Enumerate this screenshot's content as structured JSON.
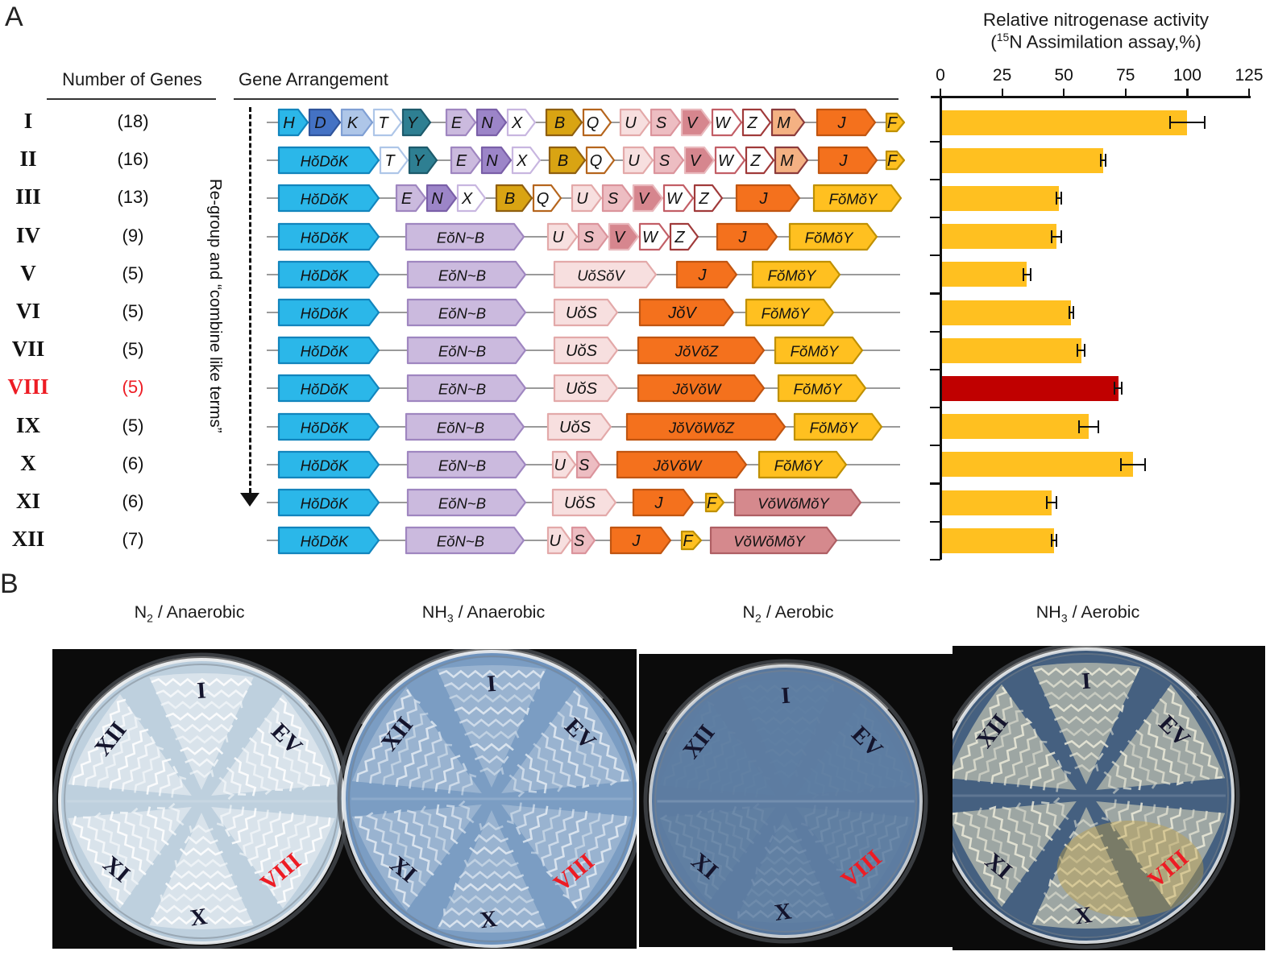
{
  "panelA": {
    "label": "A",
    "header_genes": "Number of Genes",
    "header_arrangement": "Gene Arrangement",
    "regroup_note": "Re-group and “combine like terms”",
    "numerals": [
      "I",
      "II",
      "III",
      "IV",
      "V",
      "VI",
      "VII",
      "VIII",
      "IX",
      "X",
      "XI",
      "XII"
    ],
    "counts": [
      "(18)",
      "(16)",
      "(13)",
      "(9)",
      "(5)",
      "(5)",
      "(5)",
      "(5)",
      "(5)",
      "(6)",
      "(6)",
      "(7)"
    ],
    "highlight_row": 7,
    "highlight_color": "#ED1C24",
    "gene_styles": {
      "c": {
        "f": "#2BB7E9",
        "s": "#1285BD"
      },
      "b": {
        "f": "#4472C4",
        "s": "#2F549B"
      },
      "pw": {
        "f": "#AEC6E8",
        "s": "#7F9FD4"
      },
      "wb": {
        "f": "#FFFFFF",
        "s": "#AEC6E8"
      },
      "t": {
        "f": "#2E7F92",
        "s": "#1D5A6B"
      },
      "lv": {
        "f": "#CBBADE",
        "s": "#9F86C0"
      },
      "pu": {
        "f": "#9C85C8",
        "s": "#7A5FA8"
      },
      "wp": {
        "f": "#FFFFFF",
        "s": "#C8B6E0"
      },
      "g": {
        "f": "#D9A413",
        "s": "#8F5F10"
      },
      "wo": {
        "f": "#FFFFFF",
        "s": "#B5651D"
      },
      "pp": {
        "f": "#F7DFDF",
        "s": "#E3A9A9"
      },
      "pk": {
        "f": "#EDBDC2",
        "s": "#DB949C"
      },
      "ro": {
        "f": "#D6868E",
        "s": "#E9B9BD"
      },
      "wr": {
        "f": "#FFFFFF",
        "s": "#C25E66"
      },
      "wd": {
        "f": "#FFFFFF",
        "s": "#A03A3A"
      },
      "pe": {
        "f": "#F4B183",
        "s": "#8C3B3B"
      },
      "o": {
        "f": "#F4711D",
        "s": "#C05511"
      },
      "y": {
        "f": "#FFC020",
        "s": "#BF9000"
      },
      "rb": {
        "f": "#D5898D",
        "s": "#AF5F64"
      }
    },
    "gene_rows": [
      [
        [
          "H",
          "c",
          38,
          0
        ],
        [
          "D",
          "b",
          40,
          0
        ],
        [
          "K",
          "pw",
          40,
          0
        ],
        [
          "T",
          "wb",
          36,
          0
        ],
        [
          "Y",
          "t",
          36,
          18
        ],
        [
          "E",
          "lv",
          38,
          0
        ],
        [
          "N",
          "pu",
          38,
          0
        ],
        [
          "X",
          "wp",
          36,
          12
        ],
        [
          "B",
          "g",
          46,
          0
        ],
        [
          "Q",
          "wo",
          36,
          10
        ],
        [
          "U",
          "pp",
          38,
          0
        ],
        [
          "S",
          "pk",
          38,
          0
        ],
        [
          "V",
          "ro",
          38,
          0
        ],
        [
          "W",
          "wr",
          38,
          0
        ],
        [
          "Z",
          "wd",
          36,
          0
        ],
        [
          "M",
          "pe",
          42,
          14
        ],
        [
          "J",
          "o",
          74,
          12
        ],
        [
          "F",
          "y",
          24,
          0,
          1
        ]
      ],
      [
        [
          "HŏDŏK",
          "c",
          126,
          0
        ],
        [
          "T",
          "wb",
          36,
          0
        ],
        [
          "Y",
          "t",
          36,
          16
        ],
        [
          "E",
          "lv",
          38,
          0
        ],
        [
          "N",
          "pu",
          38,
          0
        ],
        [
          "X",
          "wp",
          36,
          10
        ],
        [
          "B",
          "g",
          46,
          0
        ],
        [
          "Q",
          "wo",
          36,
          10
        ],
        [
          "U",
          "pp",
          38,
          0
        ],
        [
          "S",
          "pk",
          38,
          0
        ],
        [
          "V",
          "ro",
          38,
          0
        ],
        [
          "W",
          "wr",
          38,
          0
        ],
        [
          "Z",
          "wd",
          36,
          0
        ],
        [
          "M",
          "pe",
          42,
          12
        ],
        [
          "J",
          "o",
          74,
          10
        ],
        [
          "F",
          "y",
          24,
          0,
          1
        ]
      ],
      [
        [
          "HŏDŏK",
          "c",
          126,
          20
        ],
        [
          "E",
          "lv",
          38,
          0
        ],
        [
          "N",
          "pu",
          38,
          0
        ],
        [
          "X",
          "wp",
          36,
          12
        ],
        [
          "B",
          "g",
          46,
          0
        ],
        [
          "Q",
          "wo",
          36,
          12
        ],
        [
          "U",
          "pp",
          38,
          0
        ],
        [
          "S",
          "pk",
          38,
          0
        ],
        [
          "V",
          "ro",
          38,
          0
        ],
        [
          "W",
          "wr",
          38,
          0
        ],
        [
          "Z",
          "wd",
          36,
          16
        ],
        [
          "J",
          "o",
          80,
          16
        ],
        [
          "FŏMŏY",
          "y",
          110,
          0
        ]
      ],
      [
        [
          "HŏDŏK",
          "c",
          126,
          32
        ],
        [
          "EŏN~B",
          "lv",
          148,
          28
        ],
        [
          "U",
          "pp",
          38,
          0
        ],
        [
          "S",
          "pk",
          38,
          0
        ],
        [
          "V",
          "ro",
          38,
          0
        ],
        [
          "W",
          "wr",
          38,
          0
        ],
        [
          "Z",
          "wd",
          36,
          22
        ],
        [
          "J",
          "o",
          76,
          14
        ],
        [
          "FŏMŏY",
          "y",
          110,
          0
        ]
      ],
      [
        [
          "HŏDŏK",
          "c",
          126,
          34
        ],
        [
          "EŏN~B",
          "lv",
          148,
          34
        ],
        [
          "UŏSŏV",
          "pp",
          128,
          24
        ],
        [
          "J",
          "o",
          76,
          18
        ],
        [
          "FŏMŏY",
          "y",
          110,
          0
        ]
      ],
      [
        [
          "HŏDŏK",
          "c",
          126,
          34
        ],
        [
          "EŏN~B",
          "lv",
          148,
          34
        ],
        [
          "UŏS",
          "pp",
          80,
          26
        ],
        [
          "JŏV",
          "o",
          118,
          14
        ],
        [
          "FŏMŏY",
          "y",
          110,
          0
        ]
      ],
      [
        [
          "HŏDŏK",
          "c",
          126,
          34
        ],
        [
          "EŏN~B",
          "lv",
          148,
          34
        ],
        [
          "UŏS",
          "pp",
          80,
          24
        ],
        [
          "JŏVŏZ",
          "o",
          158,
          12
        ],
        [
          "FŏMŏY",
          "y",
          110,
          0
        ]
      ],
      [
        [
          "HŏDŏK",
          "c",
          126,
          34
        ],
        [
          "EŏN~B",
          "lv",
          148,
          34
        ],
        [
          "UŏS",
          "pp",
          80,
          24
        ],
        [
          "JŏVŏW",
          "o",
          158,
          16
        ],
        [
          "FŏMŏY",
          "y",
          110,
          0
        ]
      ],
      [
        [
          "HŏDŏK",
          "c",
          126,
          32
        ],
        [
          "EŏN~B",
          "lv",
          148,
          28
        ],
        [
          "UŏS",
          "pp",
          80,
          18
        ],
        [
          "JŏVŏWŏZ",
          "o",
          198,
          10
        ],
        [
          "FŏMŏY",
          "y",
          110,
          0
        ]
      ],
      [
        [
          "HŏDŏK",
          "c",
          126,
          34
        ],
        [
          "EŏN~B",
          "lv",
          148,
          32
        ],
        [
          "U",
          "pp",
          30,
          0
        ],
        [
          "S",
          "pk",
          30,
          20
        ],
        [
          "JŏVŏW",
          "o",
          162,
          14
        ],
        [
          "FŏMŏY",
          "y",
          110,
          0
        ]
      ],
      [
        [
          "HŏDŏK",
          "c",
          126,
          34
        ],
        [
          "EŏN~B",
          "lv",
          148,
          32
        ],
        [
          "UŏS",
          "pp",
          80,
          20
        ],
        [
          "J",
          "o",
          76,
          14
        ],
        [
          "F",
          "y",
          24,
          12,
          1
        ],
        [
          "VŏWŏMŏY",
          "rb",
          158,
          0
        ]
      ],
      [
        [
          "HŏDŏK",
          "c",
          126,
          32
        ],
        [
          "EŏN~B",
          "lv",
          148,
          28
        ],
        [
          "U",
          "pp",
          30,
          0
        ],
        [
          "S",
          "pk",
          30,
          18
        ],
        [
          "J",
          "o",
          76,
          12
        ],
        [
          "F",
          "y",
          26,
          10,
          1
        ],
        [
          "VŏWŏMŏY",
          "rb",
          158,
          0
        ]
      ]
    ]
  },
  "chart_data": {
    "type": "bar",
    "orientation": "horizontal",
    "title": "Relative nitrogenase activity",
    "subtitle_pre": "(",
    "subtitle_sup": "15",
    "subtitle_post": "N Assimilation assay,%)",
    "categories": [
      "I",
      "II",
      "III",
      "IV",
      "V",
      "VI",
      "VII",
      "VIII",
      "IX",
      "X",
      "XI",
      "XII"
    ],
    "values": [
      100,
      66,
      48,
      47,
      35,
      53,
      57,
      72,
      60,
      78,
      45,
      46
    ],
    "errors": [
      7,
      1,
      1,
      2,
      1.5,
      0.8,
      1.5,
      1.5,
      4,
      5,
      2,
      1
    ],
    "xticks": [
      0,
      25,
      50,
      75,
      100,
      125
    ],
    "xlim": [
      0,
      125
    ],
    "grid": false,
    "legend": false,
    "bar_color": "#FFC020",
    "highlight_index": 7,
    "highlight_color": "#C00000"
  },
  "panelB": {
    "label": "B",
    "conditions": [
      {
        "base": "N",
        "sub": "2",
        "rest": " / Anaerobic"
      },
      {
        "base": "NH",
        "sub": "3",
        "rest": " / Anaerobic"
      },
      {
        "base": "N",
        "sub": "2",
        "rest": " / Aerobic"
      },
      {
        "base": "NH",
        "sub": "3",
        "rest": " / Aerobic"
      }
    ],
    "dish_labels": [
      "I",
      "EV",
      "VIII",
      "X",
      "XI",
      "XII"
    ],
    "label_color": "#14142c",
    "highlight_label": "VIII",
    "highlight_color": "#ED1C24",
    "dishes": [
      {
        "name": "n2-anaerobic",
        "agar": "#b7cbdb",
        "rim": "#e8ebee",
        "streak": "#ffffff",
        "streak_opacity": 0.85,
        "wedge": "#eef3f6",
        "wedge_opacity": 0.55,
        "growth": "heavy"
      },
      {
        "name": "nh3-anaerobic",
        "agar": "#6d92bd",
        "rim": "#dfe5ea",
        "streak": "#f4f8fb",
        "streak_opacity": 0.7,
        "wedge": "#dfe8f0",
        "wedge_opacity": 0.3,
        "growth": "heavy"
      },
      {
        "name": "n2-aerobic",
        "agar": "#57779e",
        "rim": "#c9ced2",
        "streak": "#dce6ee",
        "streak_opacity": 0.3,
        "wedge": "#cfdae2",
        "wedge_opacity": 0.08,
        "growth": "faint"
      },
      {
        "name": "nh3-aerobic",
        "agar": "#3e5a7b",
        "rim": "#d7dbde",
        "streak": "#ecead9",
        "streak_opacity": 0.85,
        "wedge": "#d9d6bb",
        "wedge_opacity": 0.6,
        "growth": "dense",
        "tint": "#c9a440"
      }
    ]
  }
}
